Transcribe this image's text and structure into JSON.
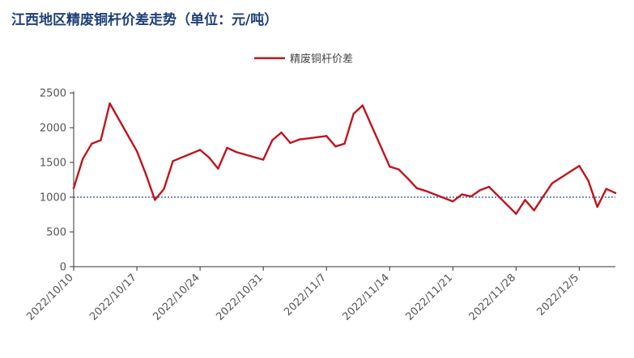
{
  "title": "江西地区精废铜杆价差走势（单位：元/吨）",
  "legend": {
    "label": "精废铜杆价差"
  },
  "colors": {
    "series": "#c0141c",
    "reference_line": "#2a4d9e",
    "title": "#1f3f7a"
  },
  "chart_data": {
    "type": "line",
    "title": "江西地区精废铜杆价差走势（单位：元/吨）",
    "xlabel": "",
    "ylabel": "",
    "ylim": [
      0,
      2500
    ],
    "yticks": [
      0,
      500,
      1000,
      1500,
      2000,
      2500
    ],
    "xlim": [
      "2022-10-10",
      "2022-12-09"
    ],
    "xtick_labels": [
      "2022/10/10",
      "2022/10/17",
      "2022/10/24",
      "2022/10/31",
      "2022/11/7",
      "2022/11/14",
      "2022/11/21",
      "2022/11/28",
      "2022/12/5"
    ],
    "xtick_dates": [
      "2022-10-10",
      "2022-10-17",
      "2022-10-24",
      "2022-10-31",
      "2022-11-07",
      "2022-11-14",
      "2022-11-21",
      "2022-11-28",
      "2022-12-05"
    ],
    "legend_position": "top-center",
    "grid": false,
    "reference_line": {
      "y": 1000,
      "style": "dotted"
    },
    "series": [
      {
        "name": "精废铜杆价差",
        "x": [
          "2022-10-10",
          "2022-10-11",
          "2022-10-12",
          "2022-10-13",
          "2022-10-14",
          "2022-10-17",
          "2022-10-18",
          "2022-10-19",
          "2022-10-20",
          "2022-10-21",
          "2022-10-24",
          "2022-10-25",
          "2022-10-26",
          "2022-10-27",
          "2022-10-28",
          "2022-10-31",
          "2022-11-01",
          "2022-11-02",
          "2022-11-03",
          "2022-11-04",
          "2022-11-07",
          "2022-11-08",
          "2022-11-09",
          "2022-11-10",
          "2022-11-11",
          "2022-11-14",
          "2022-11-15",
          "2022-11-16",
          "2022-11-17",
          "2022-11-18",
          "2022-11-21",
          "2022-11-22",
          "2022-11-23",
          "2022-11-24",
          "2022-11-25",
          "2022-11-28",
          "2022-11-29",
          "2022-11-30",
          "2022-12-01",
          "2022-12-02",
          "2022-12-05",
          "2022-12-06",
          "2022-12-07",
          "2022-12-08",
          "2022-12-09"
        ],
        "values": [
          1130,
          1550,
          1770,
          1820,
          2350,
          1660,
          1330,
          960,
          1120,
          1520,
          1680,
          1570,
          1410,
          1710,
          1650,
          1540,
          1820,
          1930,
          1780,
          1830,
          1880,
          1730,
          1770,
          2200,
          2320,
          1440,
          1400,
          1270,
          1130,
          1090,
          940,
          1040,
          1010,
          1100,
          1150,
          760,
          960,
          810,
          1010,
          1200,
          1450,
          1240,
          860,
          1120,
          1060
        ]
      }
    ]
  }
}
